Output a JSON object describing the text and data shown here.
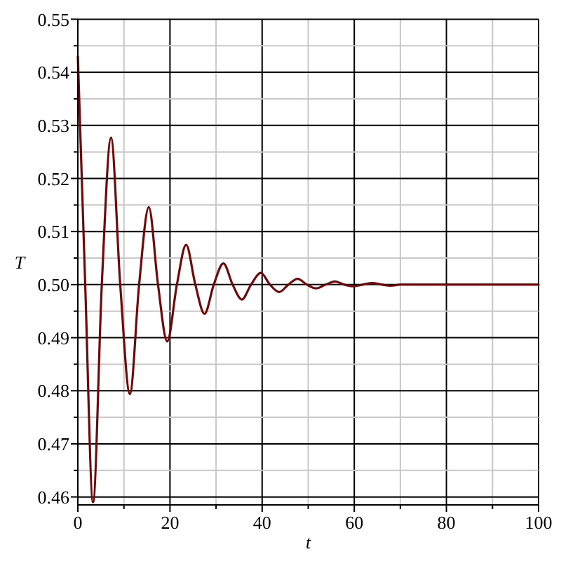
{
  "chart_data": {
    "type": "line",
    "xlabel": "t",
    "ylabel": "T",
    "x": [
      0,
      1.6,
      3.3,
      5.2,
      7.2,
      9.2,
      11.3,
      13.3,
      15.4,
      17.4,
      19.4,
      21.5,
      23.5,
      25.5,
      27.5,
      29.5,
      31.6,
      33.6,
      35.6,
      37.6,
      39.7,
      41.7,
      43.7,
      45.7,
      47.7,
      49.7,
      51.7,
      53.8,
      55.8,
      57.8,
      59.8,
      61.9,
      63.9,
      66,
      68,
      70,
      100
    ],
    "series": [
      {
        "color": "#6e0a0a",
        "values": [
          0.543,
          0.5,
          0.459,
          0.5,
          0.5277,
          0.5,
          0.4794,
          0.5,
          0.5146,
          0.5,
          0.4893,
          0.5,
          0.5075,
          0.5,
          0.4945,
          0.5,
          0.504,
          0.5,
          0.4972,
          0.5,
          0.5022,
          0.5,
          0.4986,
          0.5,
          0.5011,
          0.5,
          0.4993,
          0.5,
          0.5006,
          0.5,
          0.4997,
          0.5,
          0.5003,
          0.5,
          0.4998,
          0.5,
          0.5
        ]
      }
    ],
    "xlim": [
      0,
      100
    ],
    "ylim": [
      0.4585,
      0.55
    ],
    "xticks": [
      0,
      {
        "value": 10,
        "label": null
      },
      20,
      {
        "value": 30,
        "label": null
      },
      40,
      {
        "value": 50,
        "label": null
      },
      60,
      {
        "value": 70,
        "label": null
      },
      80,
      {
        "value": 90,
        "label": null
      },
      100
    ],
    "yticks": [
      0.46,
      {
        "value": 0.465,
        "label": null
      },
      0.47,
      {
        "value": 0.475,
        "label": null
      },
      0.48,
      {
        "value": 0.485,
        "label": null
      },
      0.49,
      {
        "value": 0.495,
        "label": null
      },
      {
        "value": 0.5,
        "label": "0.50"
      },
      {
        "value": 0.505,
        "label": null
      },
      0.51,
      {
        "value": 0.515,
        "label": null
      },
      0.52,
      {
        "value": 0.525,
        "label": null
      },
      0.53,
      {
        "value": 0.535,
        "label": null
      },
      0.54,
      {
        "value": 0.545,
        "label": null
      },
      0.55
    ],
    "grid": true,
    "line_style": "solid",
    "marker": "none"
  }
}
